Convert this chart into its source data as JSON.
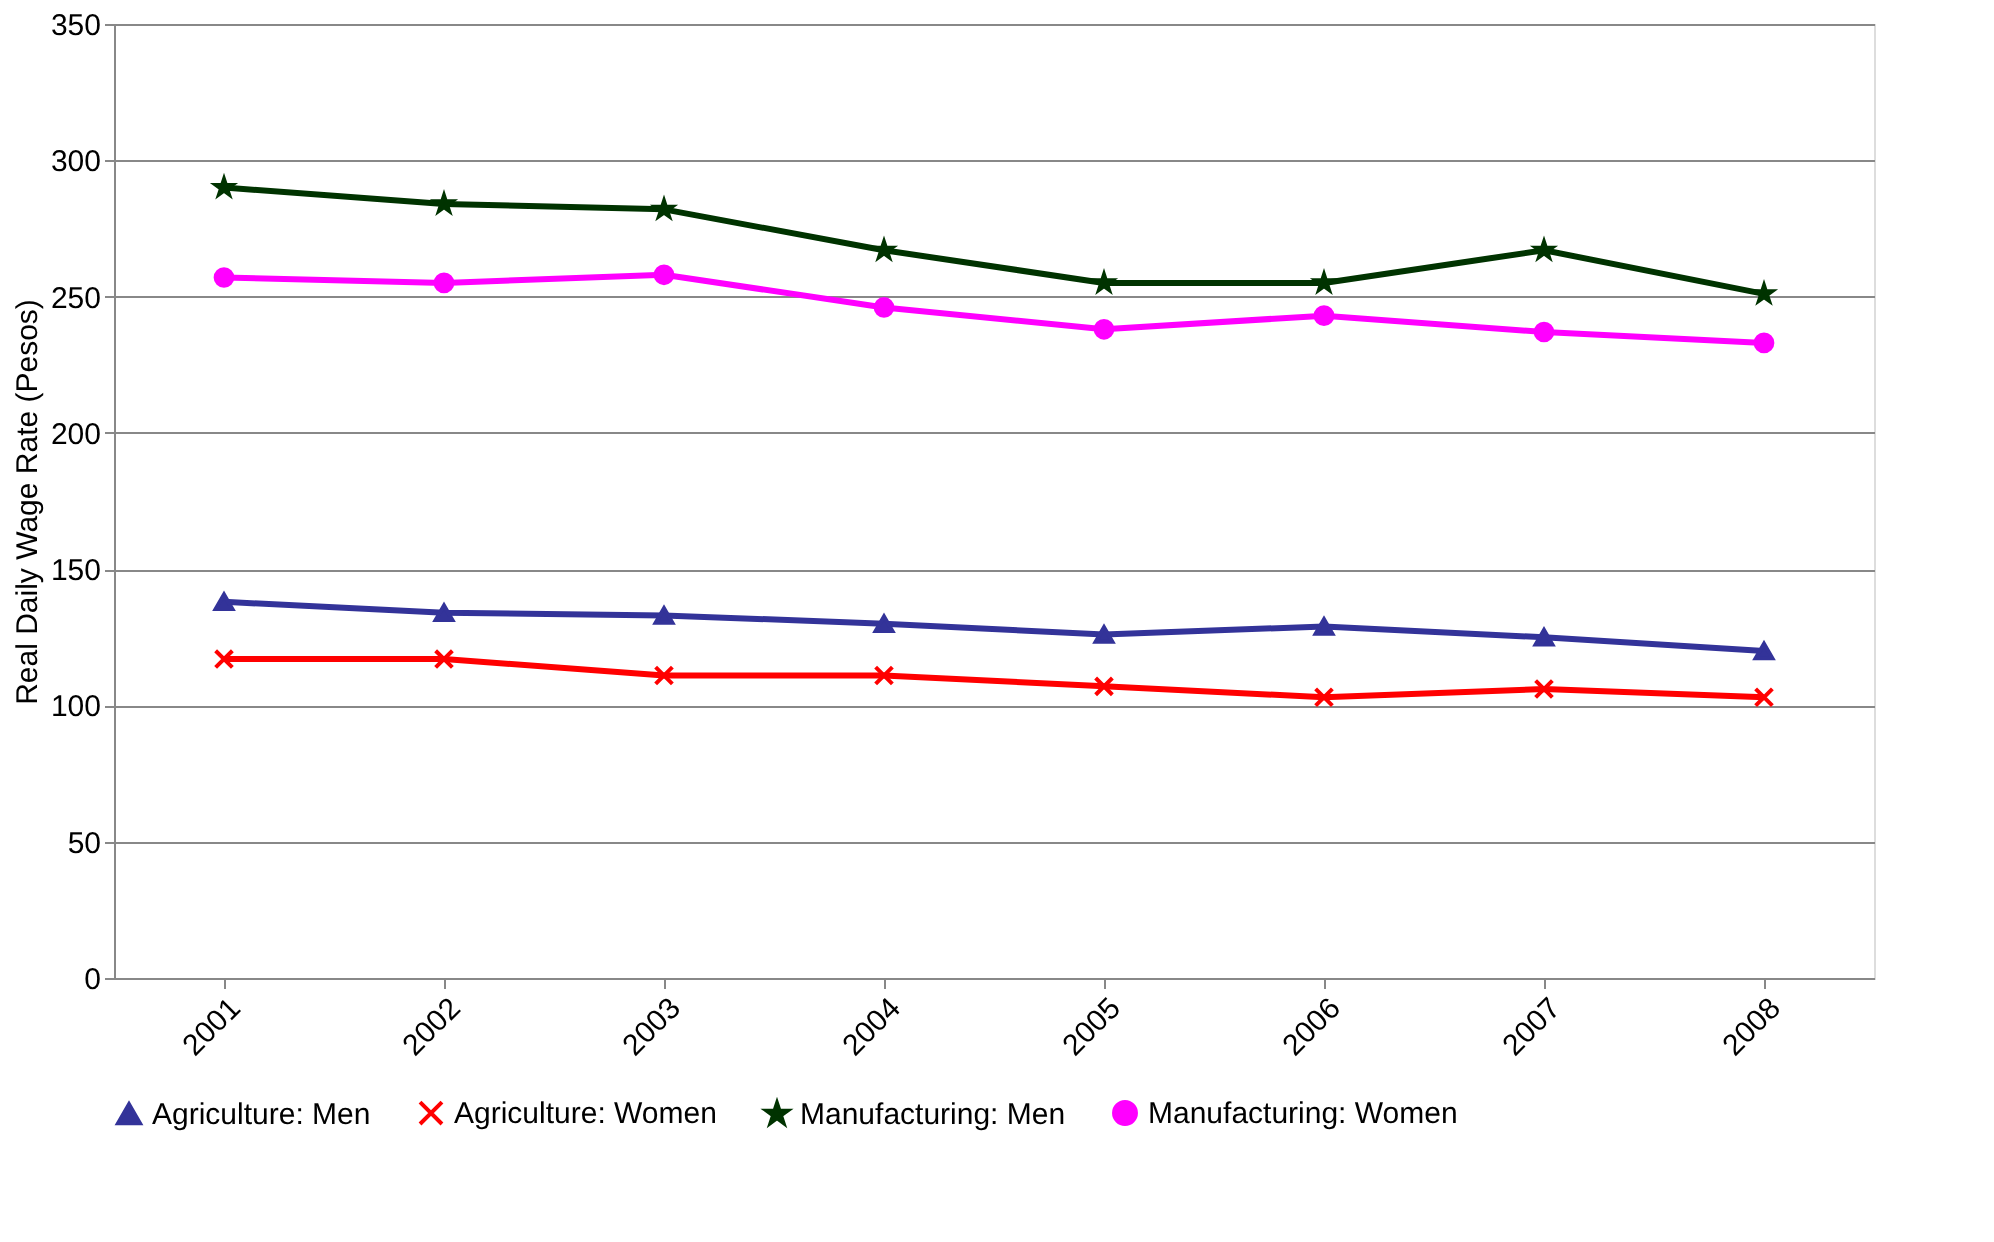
{
  "chart_data": {
    "type": "line",
    "ylabel": "Real Daily Wage Rate (Pesos)",
    "categories": [
      "2001",
      "2002",
      "2003",
      "2004",
      "2005",
      "2006",
      "2007",
      "2008"
    ],
    "series": [
      {
        "name": "Agriculture: Men",
        "color": "#333399",
        "marker": "triangle",
        "values": [
          138,
          134,
          133,
          130,
          126,
          129,
          125,
          120
        ]
      },
      {
        "name": "Agriculture: Women",
        "color": "#ff0000",
        "marker": "cross",
        "values": [
          117,
          117,
          111,
          111,
          107,
          103,
          106,
          103
        ]
      },
      {
        "name": "Manufacturing: Men",
        "color": "#003300",
        "marker": "star",
        "values": [
          290,
          284,
          282,
          267,
          255,
          255,
          267,
          251
        ]
      },
      {
        "name": "Manufacturing: Women",
        "color": "#ff00ff",
        "marker": "circle",
        "values": [
          257,
          255,
          258,
          246,
          238,
          243,
          237,
          233
        ]
      }
    ],
    "ylim": [
      0,
      350
    ],
    "yticks": [
      0,
      50,
      100,
      150,
      200,
      250,
      300,
      350
    ],
    "grid": "y",
    "legend": "bottom",
    "line_style": "solid"
  }
}
